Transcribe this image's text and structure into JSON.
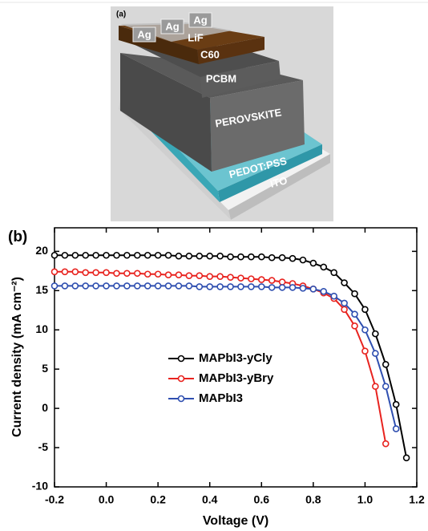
{
  "panel_a": {
    "label": "(a)",
    "layers": [
      "Ag",
      "Ag",
      "Ag",
      "LiF",
      "C60",
      "PCBM",
      "PEROVSKITE",
      "PEDOT:PSS",
      "ITO"
    ]
  },
  "chart_data": {
    "type": "line",
    "panel_label": "(b)",
    "x_label": "Voltage (V)",
    "y_label": "Current density (mA cm⁻²)",
    "x": [
      -0.2,
      -0.16,
      -0.12,
      -0.08,
      -0.04,
      0,
      0.04,
      0.08,
      0.12,
      0.16,
      0.2,
      0.24,
      0.28,
      0.32,
      0.36,
      0.4,
      0.44,
      0.48,
      0.52,
      0.56,
      0.6,
      0.64,
      0.68,
      0.72,
      0.76,
      0.8,
      0.84,
      0.88,
      0.92,
      0.96,
      1.0,
      1.04,
      1.08,
      1.12,
      1.16
    ],
    "series": [
      {
        "name": "MAPbI3-yCly",
        "color": "#000000",
        "values": [
          19.5,
          19.5,
          19.5,
          19.5,
          19.5,
          19.5,
          19.5,
          19.5,
          19.5,
          19.5,
          19.5,
          19.5,
          19.4,
          19.4,
          19.4,
          19.4,
          19.4,
          19.3,
          19.3,
          19.3,
          19.3,
          19.2,
          19.2,
          19.1,
          18.9,
          18.5,
          18.0,
          17.3,
          16.0,
          14.6,
          12.6,
          9.5,
          5.6,
          0.5,
          -6.3
        ]
      },
      {
        "name": "MAPbI3-yBry",
        "color": "#e8231f",
        "values": [
          17.4,
          17.4,
          17.4,
          17.3,
          17.3,
          17.3,
          17.2,
          17.2,
          17.2,
          17.1,
          17.1,
          17.0,
          17.0,
          16.9,
          16.9,
          16.8,
          16.8,
          16.7,
          16.6,
          16.5,
          16.4,
          16.3,
          16.1,
          15.9,
          15.6,
          15.2,
          14.7,
          14.0,
          12.6,
          10.5,
          7.3,
          2.8,
          -4.5,
          null,
          null
        ]
      },
      {
        "name": "MAPbI3",
        "color": "#2f4fb0",
        "values": [
          15.6,
          15.6,
          15.6,
          15.6,
          15.6,
          15.6,
          15.6,
          15.6,
          15.6,
          15.6,
          15.6,
          15.6,
          15.6,
          15.6,
          15.5,
          15.5,
          15.5,
          15.5,
          15.5,
          15.5,
          15.5,
          15.4,
          15.4,
          15.4,
          15.3,
          15.2,
          14.9,
          14.3,
          13.4,
          12.0,
          10.0,
          7.0,
          2.8,
          -2.6,
          null
        ]
      }
    ],
    "xlim": [
      -0.2,
      1.2
    ],
    "ylim": [
      -10,
      23
    ],
    "xticks": [
      -0.2,
      {
        "value": 0,
        "label": "0.0"
      },
      0.2,
      0.4,
      0.6,
      0.8,
      {
        "value": 1,
        "label": "1.0"
      },
      1.2
    ],
    "yticks": [
      -10,
      -5,
      0,
      5,
      10,
      15,
      20
    ]
  }
}
